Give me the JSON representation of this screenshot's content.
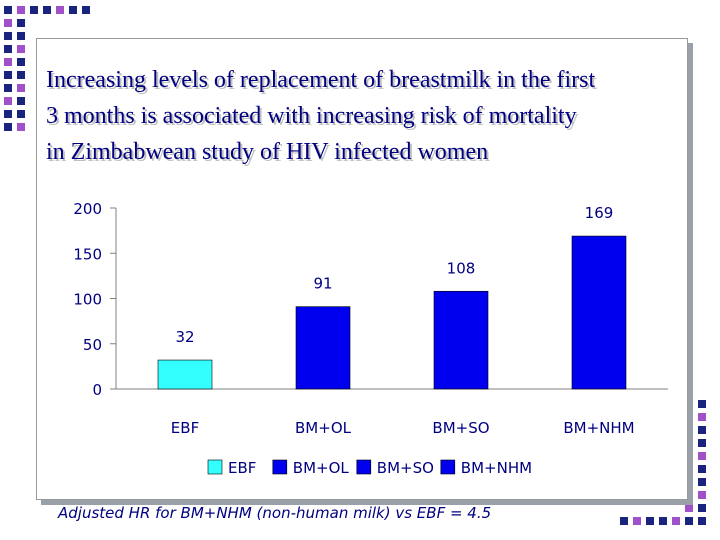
{
  "slide": {
    "title_lines": [
      "Increasing levels of replacement of breastmilk in the first",
      "3 months is associated with increasing risk of mortality",
      "in Zimbabwean study of HIV infected women"
    ],
    "footnote": "Adjusted HR for BM+NHM (non-human milk)  vs EBF = 4.5"
  },
  "colors": {
    "text": "#000080",
    "ebf": "#33ffff",
    "bm": "#0000ee",
    "decor_blue": "#1a237e",
    "decor_purple": "#a050c8"
  },
  "chart_data": {
    "type": "bar",
    "categories": [
      "EBF",
      "BM+OL",
      "BM+SO",
      "BM+NHM"
    ],
    "values": [
      32,
      91,
      108,
      169
    ],
    "data_labels": [
      "32",
      "91",
      "108",
      "169"
    ],
    "bar_colors": [
      "#33ffff",
      "#0000ee",
      "#0000ee",
      "#0000ee"
    ],
    "title": "",
    "xlabel": "",
    "ylabel": "",
    "ylim": [
      0,
      200
    ],
    "yticks": [
      "0",
      "50",
      "100",
      "150",
      "200"
    ],
    "grid": false,
    "legend": {
      "position": "bottom",
      "entries": [
        {
          "label": "EBF",
          "color": "#33ffff"
        },
        {
          "label": "BM+OL",
          "color": "#0000ee"
        },
        {
          "label": "BM+SO",
          "color": "#0000ee"
        },
        {
          "label": "BM+NHM",
          "color": "#0000ee"
        }
      ]
    }
  }
}
